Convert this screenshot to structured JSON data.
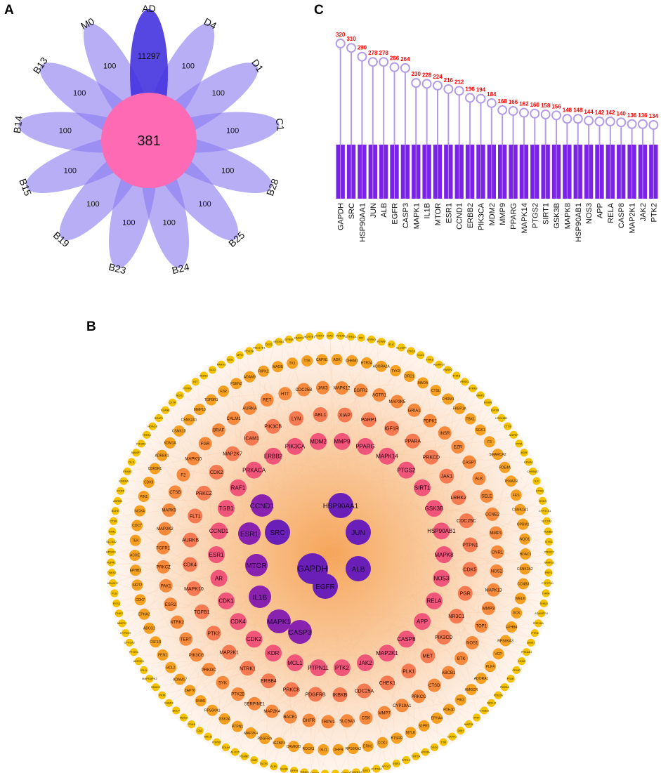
{
  "panels": {
    "a": {
      "letter": "A"
    },
    "b": {
      "letter": "B"
    },
    "c": {
      "letter": "C"
    }
  },
  "venn": {
    "center_value": "381",
    "petals": [
      {
        "label": "AD",
        "value": "11297",
        "highlight": true
      },
      {
        "label": "D4",
        "value": "100"
      },
      {
        "label": "D1",
        "value": "100"
      },
      {
        "label": "C1",
        "value": "100"
      },
      {
        "label": "B28",
        "value": "100"
      },
      {
        "label": "B25",
        "value": "100"
      },
      {
        "label": "B24",
        "value": "100"
      },
      {
        "label": "B23",
        "value": "100"
      },
      {
        "label": "B19",
        "value": "100"
      },
      {
        "label": "B15",
        "value": "100"
      },
      {
        "label": "B14",
        "value": "100"
      },
      {
        "label": "B13",
        "value": "100"
      },
      {
        "label": "M0",
        "value": "100"
      }
    ],
    "colors": {
      "petal": "#8a7cf0",
      "highlight": "#4433e0",
      "center": "#ff6ab4"
    }
  },
  "chart_data": {
    "type": "bar",
    "categories": [
      "GAPDH",
      "SRC",
      "HSP90AA1",
      "JUN",
      "ALB",
      "EGFR",
      "CASP3",
      "MAPK1",
      "IL1B",
      "MTOR",
      "ESR1",
      "CCND1",
      "ERBB2",
      "PIK3CA",
      "MDM2",
      "MMP9",
      "PPARG",
      "MAPK14",
      "PTGS2",
      "SIRT1",
      "GSK3B",
      "MAPK8",
      "HSP90AB1",
      "NOS3",
      "APP",
      "RELA",
      "CASP8",
      "MAP2K1",
      "JAK2",
      "PTK2"
    ],
    "values": [
      320,
      310,
      290,
      278,
      278,
      266,
      264,
      230,
      228,
      224,
      216,
      212,
      196,
      194,
      184,
      168,
      166,
      162,
      160,
      158,
      156,
      148,
      148,
      144,
      142,
      142,
      140,
      136,
      136,
      134
    ],
    "colors": {
      "bar": "#7a22e8",
      "stem": "#b39ce6",
      "label": "#ff0000"
    }
  },
  "network": {
    "colors": {
      "core": "#6a1fb8",
      "ring1": "#c0288e",
      "ring2": "#f0557a",
      "ring3": "#f57a52",
      "ring4": "#f58a3c",
      "ring5": "#f5a020",
      "outer": "#f5c200",
      "edges": "#f7b98a",
      "hub": "#f5a050"
    },
    "core": [
      "GAPDH",
      "SRC",
      "HSP90AA1",
      "JUN",
      "ALB",
      "EGFR",
      "CASP3",
      "MAPK1",
      "IL1B",
      "MTOR",
      "ESR1",
      "CCND1"
    ],
    "ring1": [
      "MMP9",
      "PPARG",
      "MAPK14",
      "PTGS2",
      "SIRT1",
      "GSK3B",
      "HSP90AB1",
      "MAPK8",
      "NOS3",
      "RELA",
      "APP",
      "CASP8",
      "MAP2K1",
      "JAK2",
      "PTK2",
      "PTPN11",
      "MCL1",
      "KDR",
      "CDK2",
      "CDK4",
      "CDK1",
      "AR",
      "ESR1",
      "CCND1",
      "TGB1",
      "RAF1",
      "PRKACA",
      "ERBB2",
      "PIK3CA",
      "MDM2"
    ],
    "ring2": [
      "XIAP",
      "PARP1",
      "IGF1R",
      "PPARA",
      "PRKCD",
      "JAK1",
      "LRRK2",
      "CDC25C",
      "PTPN1",
      "CDK5",
      "PGR",
      "NR3C1",
      "PIK3CD",
      "MET",
      "PLK1",
      "CHEK1",
      "CDC25A",
      "IKBKB",
      "PDGFRB",
      "PRKCB",
      "ERBB4",
      "NTRK1",
      "MAP2K1",
      "PTK2",
      "TGFB1",
      "MAPK10",
      "CDK4",
      "AURKB",
      "FLT1",
      "PRKCZ",
      "CDK2",
      "MAP2K7",
      "ICAM1",
      "PIK3CB",
      "LYN",
      "ABL1"
    ],
    "ring3": [
      "MAPK12",
      "EGFR2",
      "AGTR1",
      "MAP3K5",
      "GRIA1",
      "PDPK1",
      "INSR",
      "EZR",
      "CASP7",
      "ALK",
      "SELE",
      "CCNE2",
      "MMP1",
      "CNR1",
      "NOS2",
      "MAPK13",
      "MMP3",
      "TOP1",
      "NOS1",
      "BTK",
      "ABCB1",
      "CTSD",
      "PRKCG",
      "CYP19A1",
      "MMP7",
      "CSK",
      "SLC6A3",
      "TRPV1",
      "DHFR",
      "BACE1",
      "MAP2K4",
      "SERPINE1",
      "PTK2B",
      "SYK",
      "PRKDC",
      "PIK3CG",
      "TERT",
      "NTRK2",
      "ESR2",
      "PAK1",
      "PRKCZ",
      "FGFR1",
      "MAP2K2",
      "MAPK9",
      "CTSB",
      "F2",
      "MAPK10",
      "FGR",
      "BRAF",
      "CALM1",
      "AURKA",
      "RET",
      "HTT",
      "CDC25B",
      "JAK3"
    ],
    "ring4": [
      "ADK",
      "CHRM1",
      "HTR2A",
      "ADORA2A",
      "TYK2",
      "DRD1",
      "MAOA",
      "CTSL",
      "CHRM1",
      "FKBP1A",
      "TBK1",
      "SGK1",
      "F3",
      "SMARCA2",
      "PDE4A",
      "TBXA2R",
      "FES",
      "CSNK1A1",
      "OPRM1",
      "NQO1",
      "HDAC1",
      "CSNK2A2",
      "CCNB3",
      "MELK",
      "GCK",
      "EPHB4",
      "RPS6KA3",
      "VCP",
      "PLK4",
      "ADORA1",
      "HMGCR",
      "PIK3",
      "PDE4D",
      "EPHA4",
      "S1PR1",
      "MYLK",
      "BTSRR",
      "CCK1",
      "ERN1",
      "RPS6KA2",
      "DHFR",
      "GLI1",
      "ROCK1",
      "CAMK2D",
      "IGFBP3",
      "PDGFRA",
      "MAP2K4",
      "PTPN1",
      "GSK3A",
      "RPS6KA1",
      "DNM1",
      "ZAP70",
      "ADAM17",
      "BCL2",
      "FEN1",
      "CSF1R",
      "ABCG2",
      "EPHA2",
      "CDK7",
      "SIRT2",
      "EPHB2",
      "ACHE",
      "TEK",
      "CDC7",
      "NOX4",
      "PIN1",
      "CDK9",
      "CDK5R1",
      "ADRBK1",
      "KDM1A",
      "CSNK1D",
      "CSNK2A1",
      "MMP13",
      "TGFBR1",
      "F2R",
      "PSEN2",
      "ADAM9",
      "RIPK2",
      "MAOB",
      "TK1",
      "TTK",
      "CAPN1"
    ],
    "outer": [
      "GAK",
      "PDE4B",
      "DYRK1A",
      "MIF",
      "NTRK3",
      "PTPRF",
      "ELK",
      "SLC6A4",
      "STK16",
      "CCK1",
      "TNKS",
      "ADAM10",
      "PARP2",
      "THRB",
      "PRSS1",
      "NTRK3",
      "MMP2",
      "RXRA",
      "IGF1R",
      "HSD11B1",
      "CTSS",
      "ANPEP",
      "PPIA",
      "KDR",
      "EPHA1",
      "CHRNA7",
      "ILK",
      "CTSG",
      "GSK3",
      "CYP17A1",
      "SLC2A1",
      "TUBB3",
      "GYS1",
      "PIK3C2",
      "MMP16",
      "PRF1",
      "CYP27A1",
      "THRA",
      "SHBG",
      "ADAMTS4",
      "PDE10A",
      "PTK6",
      "LIMK1",
      "PRKAB1",
      "CCNC",
      "CDNR",
      "PSM1",
      "PDE5A",
      "PDE2A",
      "NR1H3",
      "GTGES",
      "PNP",
      "MAP3K",
      "DBH",
      "CAPN1",
      "TTR",
      "DRD2",
      "HTR3A",
      "TOP2A",
      "PPP1C",
      "ESR1",
      "APOC3",
      "CYP3A4",
      "SIRT3",
      "PLA2G2A",
      "AURKA",
      "PTPRC",
      "GCR",
      "ALDOA",
      "TNNC1",
      "DPP4",
      "GUSB",
      "ALPL",
      "TACR1",
      "VDR",
      "PSMB5",
      "ALOX5",
      "LTA4H",
      "PTPN2",
      "NR1I2",
      "CA2",
      "CDK6",
      "NQO2",
      "SELP",
      "FABP4",
      "PKM",
      "HDAC2",
      "MAPKAPK2",
      "IDH1",
      "AKR1B1",
      "PTGS1",
      "CYP1A2",
      "CYP2C9",
      "MMP12",
      "CHK2",
      "FNTA",
      "PLG",
      "ADAM17",
      "TNKS2",
      "FGFR2",
      "HPGDS",
      "SLC5A2",
      "PIM1",
      "CTSK",
      "BCHE",
      "ADRB2",
      "CCR5",
      "ESRRA",
      "FFAR1",
      "GLS",
      "NAMPT",
      "PIK3R1",
      "TRPA1",
      "HDAC8",
      "SOAT1",
      "ELANE",
      "CFTR",
      "NOX1",
      "PTPRS",
      "KIT",
      "RORC",
      "SCD",
      "PARP3",
      "IDO1",
      "MPO",
      "PDE3A",
      "HSD17B1",
      "CES1",
      "SRD5A1",
      "GPR55",
      "HMOX1",
      "HCRTR1",
      "P2RX7"
    ]
  }
}
